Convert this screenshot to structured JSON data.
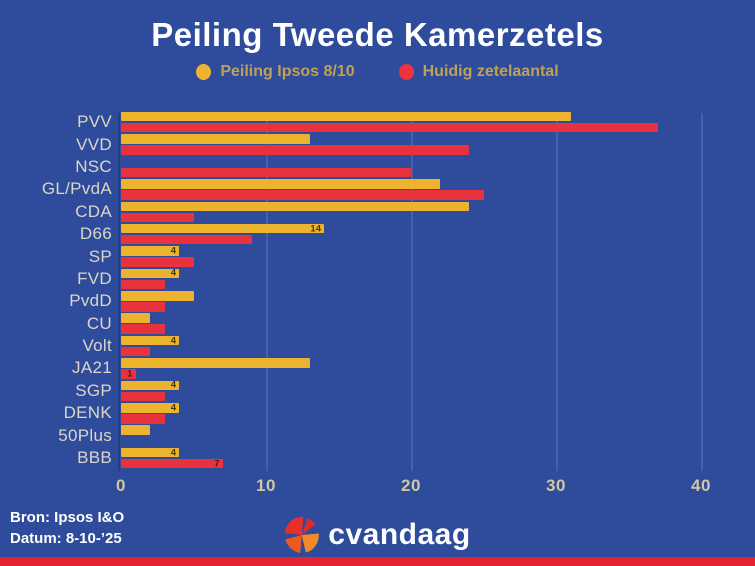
{
  "title": "Peiling Tweede Kamerzetels",
  "legend": {
    "items": [
      {
        "label": "Peiling Ipsos 8/10",
        "color": "#edb32f"
      },
      {
        "label": "Huidig zetelaantal",
        "color": "#ee3340"
      }
    ]
  },
  "chart_data": {
    "type": "bar",
    "orientation": "horizontal",
    "title": "Peiling Tweede Kamerzetels",
    "categories": [
      "PVV",
      "VVD",
      "NSC",
      "GL/PvdA",
      "CDA",
      "D66",
      "SP",
      "FVD",
      "PvdD",
      "CU",
      "Volt",
      "JA21",
      "SGP",
      "DENK",
      "50Plus",
      "BBB"
    ],
    "series": [
      {
        "name": "Peiling Ipsos 8/10",
        "color": "#edb32f",
        "values": [
          31,
          13,
          0,
          22,
          24,
          14,
          4,
          4,
          5,
          2,
          4,
          13,
          4,
          4,
          2,
          4
        ],
        "visible_value_labels": [
          "",
          "",
          "",
          "",
          "",
          "14",
          "4",
          "4",
          "",
          "",
          "4",
          "",
          "4",
          "4",
          "",
          "4"
        ]
      },
      {
        "name": "Huidig zetelaantal",
        "color": "#e8333f",
        "values": [
          37,
          24,
          20,
          25,
          5,
          9,
          5,
          3,
          3,
          3,
          2,
          1,
          3,
          3,
          0,
          7
        ],
        "visible_value_labels": [
          "",
          "",
          "",
          "",
          "",
          "",
          "",
          "",
          "",
          "",
          "",
          "1",
          "",
          "",
          "",
          "7"
        ]
      }
    ],
    "xticks": [
      "0",
      "10",
      "20",
      "30",
      "40"
    ],
    "xlim": [
      0,
      40
    ],
    "grid": "vertical",
    "legend_position": "top"
  },
  "footer": {
    "source": "Bron: Ipsos I&O",
    "date": "Datum: 8-10-’25",
    "brand": "cvandaag"
  },
  "colors": {
    "background": "#2e4c9b",
    "poll_bar": "#edb32f",
    "seat_bar": "#e8333f",
    "legend_text": "#bfa156",
    "axis_text": "#cfc8a4",
    "category_text": "#dcd6c7",
    "title_text": "#ffffff",
    "bottom_strip": "#e52231",
    "gridline": "rgba(255,255,255,0.12)"
  }
}
